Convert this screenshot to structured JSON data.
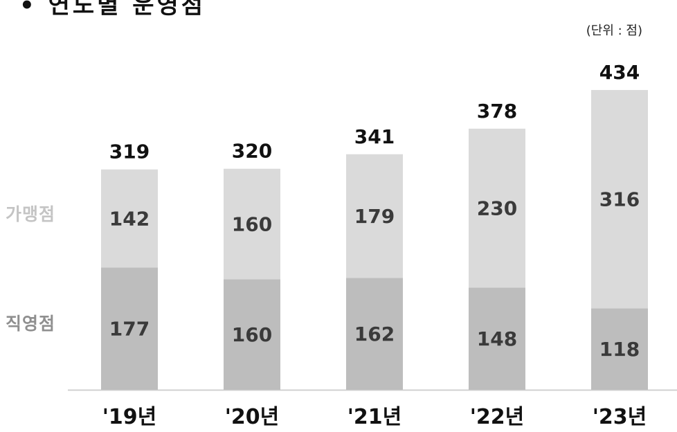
{
  "title": "• 연도별 운영점",
  "unit_label": "(단위 : 점)",
  "colors": {
    "franchise": "#dadada",
    "direct": "#bdbdbd",
    "text_dark": "#3a3a3a",
    "total_text": "#111111",
    "baseline": "#d0d0d0"
  },
  "chart_data": {
    "type": "bar",
    "stacked": true,
    "categories": [
      "'19년",
      "'20년",
      "'21년",
      "'22년",
      "'23년"
    ],
    "series": [
      {
        "name": "직영점",
        "values": [
          177,
          160,
          162,
          148,
          118
        ]
      },
      {
        "name": "가맹점",
        "values": [
          142,
          160,
          179,
          230,
          316
        ]
      }
    ],
    "totals": [
      319,
      320,
      341,
      378,
      434
    ],
    "title": "• 연도별 운영점",
    "xlabel": "",
    "ylabel": "",
    "ylim": [
      0,
      434
    ],
    "grid": false,
    "legend": "left"
  }
}
